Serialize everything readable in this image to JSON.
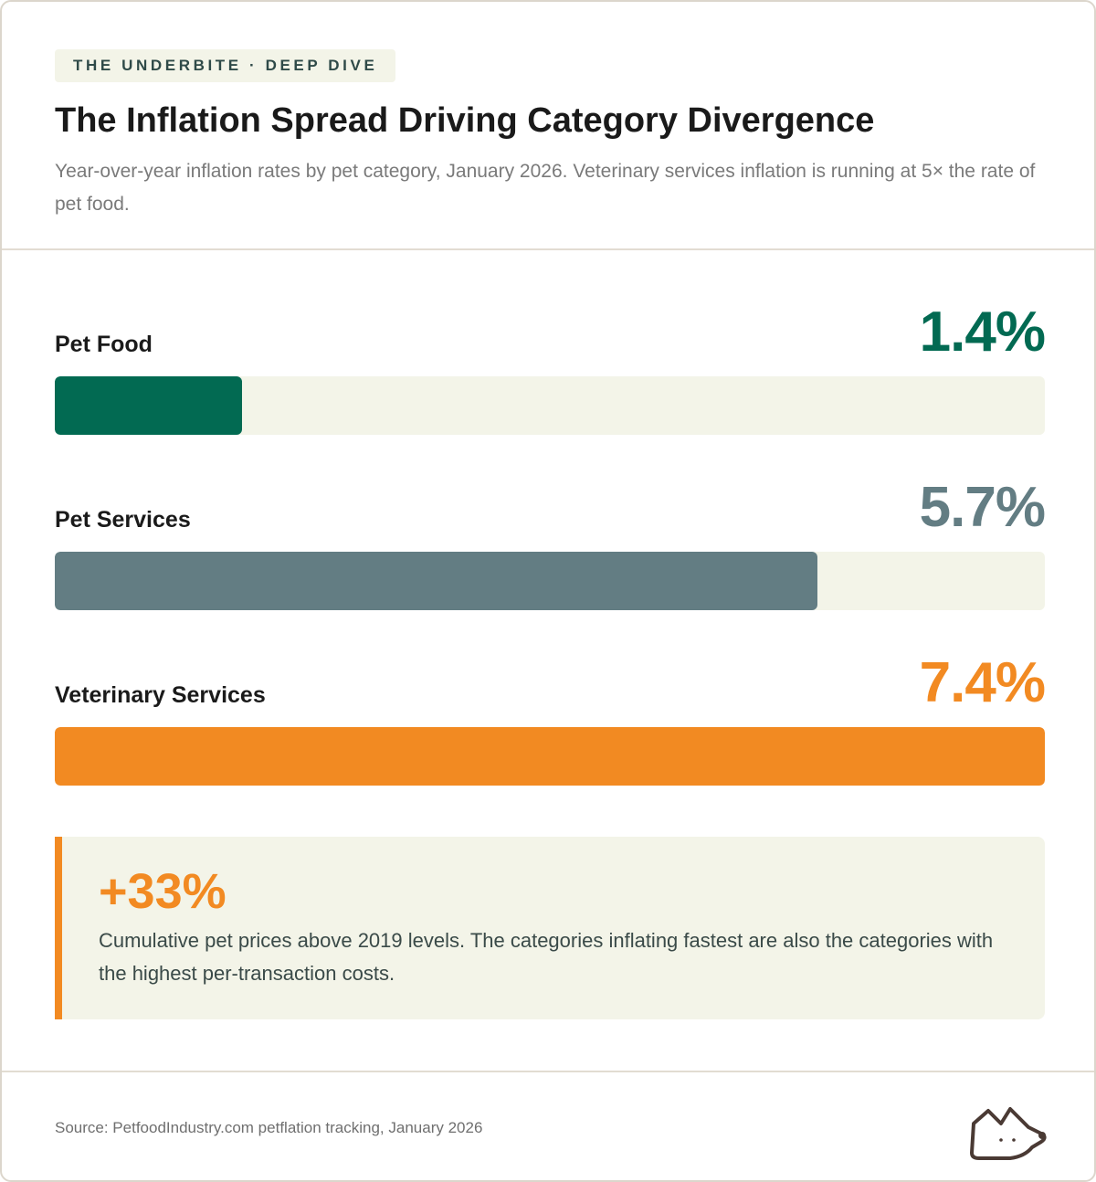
{
  "header": {
    "kicker": "THE UNDERBITE · DEEP DIVE",
    "title": "The Inflation Spread Driving Category Divergence",
    "subtitle": "Year-over-year inflation rates by pet category, January 2026. Veterinary services inflation is running at 5× the rate of pet food."
  },
  "chart_data": {
    "type": "bar",
    "orientation": "horizontal",
    "title": "The Inflation Spread Driving Category Divergence",
    "xlabel": "",
    "ylabel": "",
    "unit": "%",
    "xlim": [
      0,
      7.4
    ],
    "categories": [
      "Pet Food",
      "Pet Services",
      "Veterinary Services"
    ],
    "values": [
      1.4,
      5.7,
      7.4
    ],
    "value_labels": [
      "1.4%",
      "5.7%",
      "7.4%"
    ],
    "colors": [
      "#026a52",
      "#637d83",
      "#f28a22"
    ]
  },
  "callout": {
    "value": "+33%",
    "text": "Cumulative pet prices above 2019 levels. The categories inflating fastest are also the categories with the highest per-transaction costs."
  },
  "footer": {
    "source": "Source: PetfoodIndustry.com petflation tracking, January 2026",
    "logo_icon": "dog-head-icon"
  }
}
